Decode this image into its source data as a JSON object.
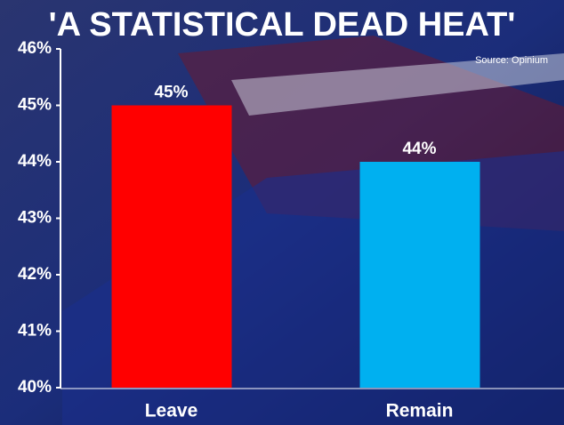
{
  "chart_data": {
    "type": "bar",
    "title": "'A STATISTICAL DEAD HEAT'",
    "source": "Source: Opinium",
    "categories": [
      "Leave",
      "Remain"
    ],
    "values": [
      45,
      44
    ],
    "value_labels": [
      "45%",
      "44%"
    ],
    "colors": [
      "#ff0000",
      "#00b0f0"
    ],
    "ylim": [
      40,
      46
    ],
    "yticks": [
      {
        "value": 40,
        "label": "40%"
      },
      {
        "value": 41,
        "label": "41%"
      },
      {
        "value": 42,
        "label": "42%"
      },
      {
        "value": 43,
        "label": "43%"
      },
      {
        "value": 44,
        "label": "44%"
      },
      {
        "value": 45,
        "label": "45%"
      },
      {
        "value": 46,
        "label": "46%"
      }
    ]
  }
}
